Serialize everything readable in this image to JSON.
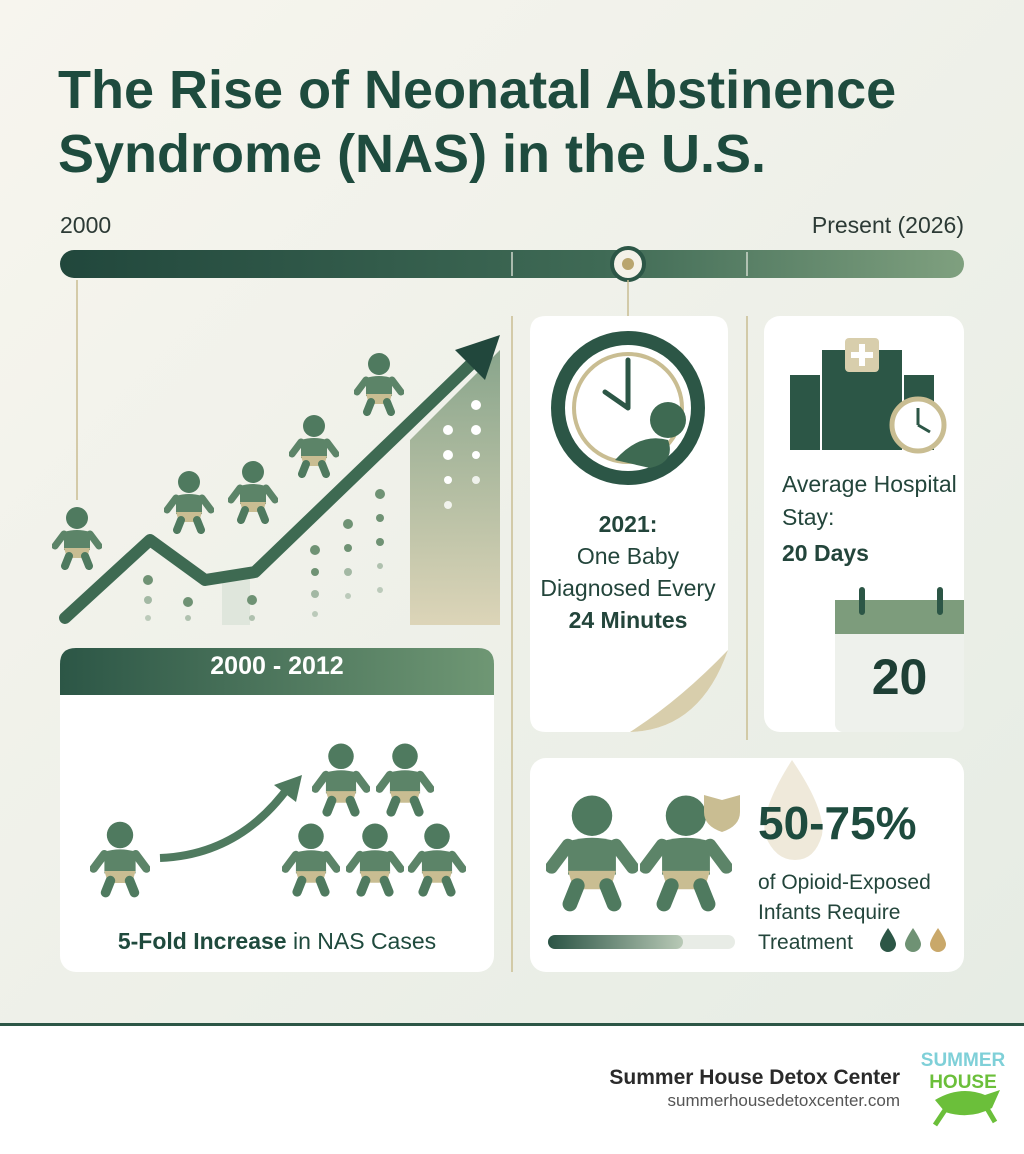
{
  "header": {
    "title": "The Rise of Neonatal Abstinence Syndrome (NAS) in the U.S."
  },
  "timeline": {
    "start": "2000",
    "end": "Present (2026)"
  },
  "period_panel": {
    "heading": "2000 - 2012",
    "caption_bold": "5-Fold Increase",
    "caption": "in NAS Cases"
  },
  "diagnosis_card": {
    "year": "2021:",
    "text": "One Baby Diagnosed Every",
    "number": "24",
    "unit": "Minutes"
  },
  "hospital_card": {
    "label": "Average Hospital Stay:",
    "value": "20 Days",
    "calendar_day": "20"
  },
  "treatment_card": {
    "percent": "50-75%",
    "text": "of Opioid-Exposed Infants Require Treatment"
  },
  "footer": {
    "organization": "Summer House Detox Center",
    "url": "summerhousedetoxcenter.com",
    "logo_top": "SUMMER",
    "logo_bottom": "HOUSE"
  }
}
